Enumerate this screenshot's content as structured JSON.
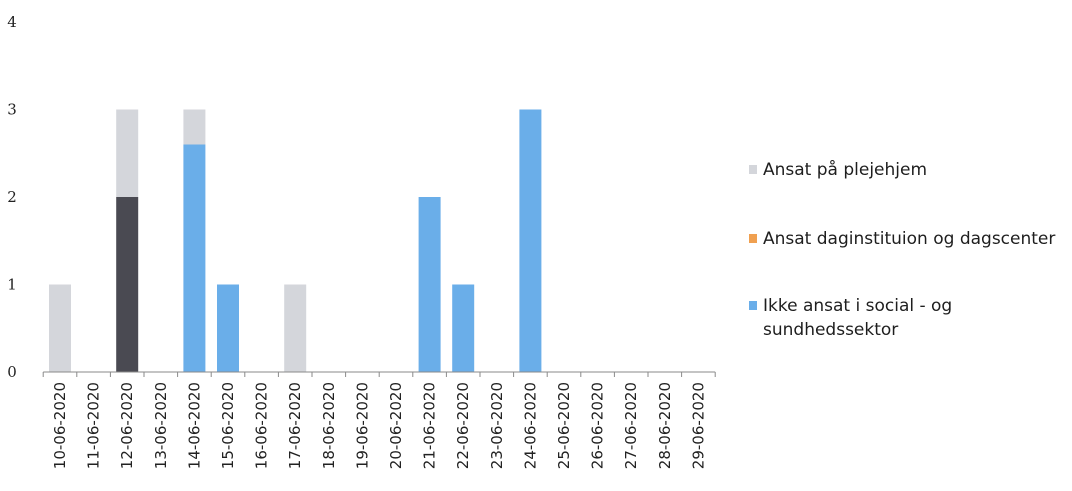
{
  "chart_data": {
    "type": "bar",
    "stacked": true,
    "title": "",
    "xlabel": "",
    "ylabel": "",
    "ylim": [
      0,
      4
    ],
    "yticks": [
      "0",
      "1",
      "2",
      "3",
      "4"
    ],
    "grid": false,
    "legend_position": "right",
    "categories": [
      "10-06-2020",
      "11-06-2020",
      "12-06-2020",
      "13-06-2020",
      "14-06-2020",
      "15-06-2020",
      "16-06-2020",
      "17-06-2020",
      "18-06-2020",
      "19-06-2020",
      "20-06-2020",
      "21-06-2020",
      "22-06-2020",
      "23-06-2020",
      "24-06-2020",
      "25-06-2020",
      "26-06-2020",
      "27-06-2020",
      "28-06-2020",
      "29-06-2020"
    ],
    "series": [
      {
        "color": "#4a4a52",
        "values": [
          0,
          0,
          2,
          0,
          0,
          0,
          0,
          0,
          0,
          0,
          0,
          0,
          0,
          0,
          0,
          0,
          0,
          0,
          0,
          0
        ]
      },
      {
        "name": "Ikke ansat i social - og sundhedssektor",
        "color": "#6aaee9",
        "values": [
          0,
          0,
          0,
          0,
          2.6,
          1,
          0,
          0,
          0,
          0,
          0,
          2,
          1,
          0,
          3,
          0,
          0,
          0,
          0,
          0
        ]
      },
      {
        "name": "Ansat daginstituion og dagscenter",
        "color": "#f0a050",
        "values": [
          0,
          0,
          0,
          0,
          0,
          0,
          0,
          0,
          0,
          0,
          0,
          0,
          0,
          0,
          0,
          0,
          0,
          0,
          0,
          0
        ]
      },
      {
        "name": "Ansat på plejehjem",
        "color": "#d4d6db",
        "values": [
          1,
          0,
          1,
          0,
          0.4,
          0,
          0,
          1,
          0,
          0,
          0,
          0,
          0,
          0,
          0,
          0,
          0,
          0,
          0,
          0
        ]
      }
    ],
    "legend": [
      {
        "label": "Ansat på plejehjem",
        "color": "#d4d6db"
      },
      {
        "label": "Ansat daginstituion og dagscenter",
        "color": "#f0a050"
      },
      {
        "label": "Ikke ansat i social - og",
        "label_line2": "sundhedssektor",
        "color": "#6aaee9"
      }
    ]
  }
}
